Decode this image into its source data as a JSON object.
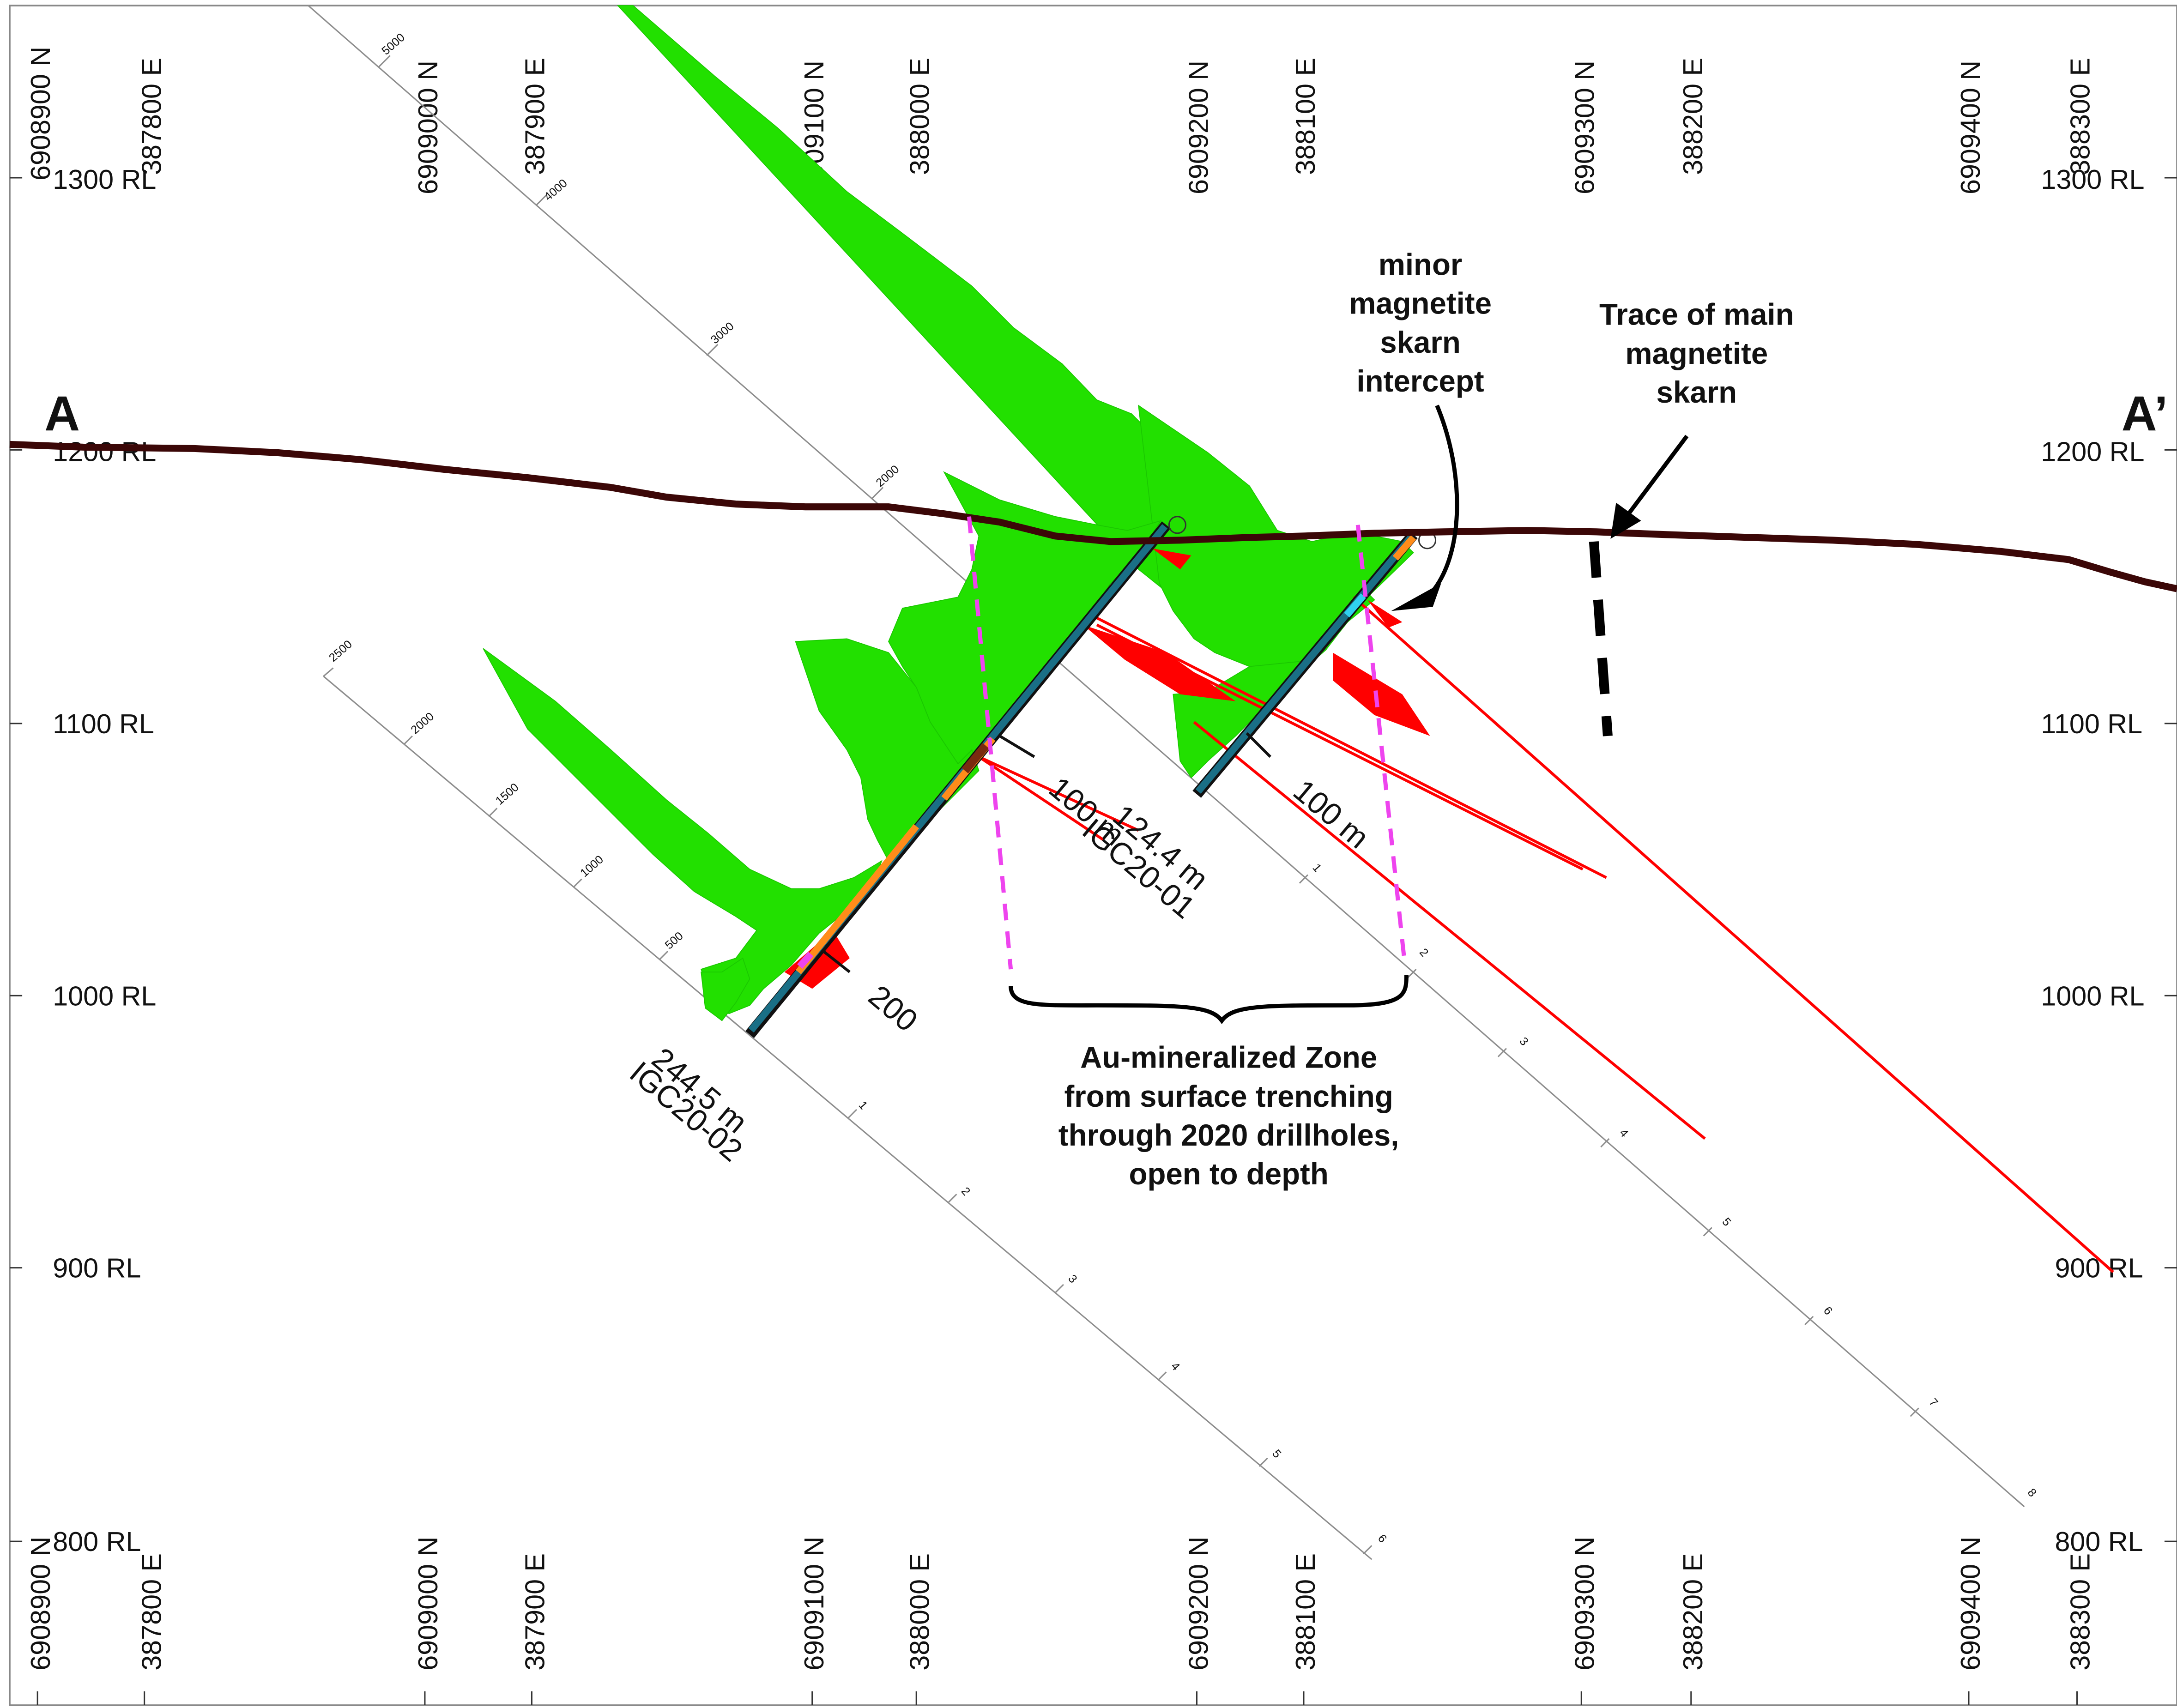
{
  "section": {
    "label_left": "A",
    "label_right": "A’",
    "colors": {
      "topography": "#3b0707",
      "green_histogram": "#22e000",
      "red_histogram": "#ff0000",
      "mineralized_zone_outline": "#ee44ee",
      "magnetite_skarn_trace": "#000000",
      "scale_lines": "#9a9a9a"
    }
  },
  "grid_labels": [
    {
      "label": "6908900 N"
    },
    {
      "label": "387800 E"
    },
    {
      "label": "6909000 N"
    },
    {
      "label": "387900 E"
    },
    {
      "label": "6909100 N"
    },
    {
      "label": "388000 E"
    },
    {
      "label": "6909200 N"
    },
    {
      "label": "388100 E"
    },
    {
      "label": "6909300 N"
    },
    {
      "label": "388200 E"
    },
    {
      "label": "6909400 N"
    },
    {
      "label": "388300 E"
    }
  ],
  "elevation_labels": [
    "1300 RL",
    "1200 RL",
    "1100 RL",
    "1000 RL",
    "900 RL",
    "800 RL"
  ],
  "scales": {
    "scale_a_ticks": [
      "5000",
      "4000",
      "3000",
      "2000"
    ],
    "scale_b_ticks": [
      "2500",
      "2000",
      "1500",
      "1000",
      "500"
    ],
    "scale_c_ticks": [
      "1",
      "2",
      "3",
      "4",
      "5",
      "6"
    ],
    "scale_d_ticks": [
      "1",
      "2",
      "3",
      "4",
      "5",
      "6",
      "7",
      "8"
    ]
  },
  "drillholes": [
    {
      "id": "IGC20-01",
      "length": "124.4 m",
      "depth_marker": "100 m"
    },
    {
      "id": "IGC20-02",
      "length": "244.5 m",
      "depth_marker_1": "100 m",
      "depth_marker_2": "200"
    }
  ],
  "annotations": {
    "minor_skarn": [
      "minor",
      "magnetite",
      "skarn",
      "intercept"
    ],
    "main_skarn": [
      "Trace of main",
      "magnetite",
      "skarn"
    ],
    "au_zone": [
      "Au-mineralized Zone",
      "from surface trenching",
      "through 2020 drillholes,",
      "open to depth"
    ]
  }
}
